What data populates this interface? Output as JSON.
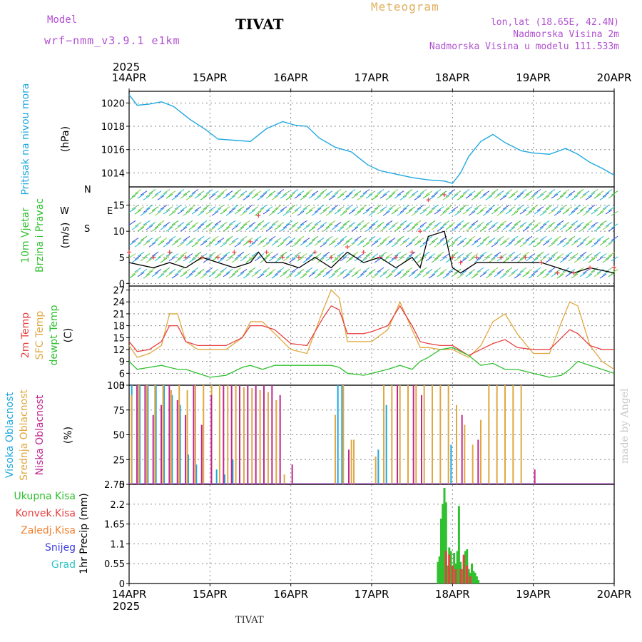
{
  "header": {
    "model_label": "Model",
    "model_name": "wrf−nmm_v3.9.1  e1km",
    "title": "TIVAT",
    "chart_name": "Meteogram",
    "lonlat": "lon,lat (18.65E, 42.4N)",
    "elev_station": "Nadmorska Visina 2m",
    "elev_model": "Nadmorska Visina u modelu 111.533m"
  },
  "footer": {
    "station": "TIVAT",
    "credit": "made by Angel"
  },
  "time_axis": {
    "year_top": "2025",
    "year_bottom": "2025",
    "labels": [
      "14APR",
      "15APR",
      "16APR",
      "17APR",
      "18APR",
      "19APR",
      "20APR"
    ]
  },
  "colors": {
    "pressure": "#20a8e0",
    "t2m": "#e84040",
    "sfc": "#e0a840",
    "dewpt": "#30c030",
    "high_cloud": "#20a8e0",
    "mid_cloud": "#e0a840",
    "low_cloud": "#c02890",
    "total_precip": "#30c030",
    "conv_precip": "#e84040",
    "frz_precip": "#f08030",
    "snow": "#4040e0",
    "grad": "#30c0c0"
  },
  "chart_data": [
    {
      "type": "line",
      "panel": "pressure",
      "ylabel_left": "Pritisak na nivou mora",
      "unit": "(hPa)",
      "ylim": [
        1012.8,
        1021
      ],
      "yticks": [
        1014,
        1016,
        1018,
        1020
      ],
      "x_days": [
        0,
        0.1,
        0.25,
        0.4,
        0.55,
        0.75,
        0.95,
        1.1,
        1.3,
        1.5,
        1.7,
        1.9,
        2.05,
        2.2,
        2.35,
        2.55,
        2.75,
        2.95,
        3.1,
        3.3,
        3.5,
        3.7,
        3.9,
        4.0,
        4.1,
        4.2,
        4.35,
        4.5,
        4.65,
        4.85,
        5.0,
        5.2,
        5.4,
        5.55,
        5.7,
        5.85,
        6.0
      ],
      "series": [
        {
          "values": [
            1020.7,
            1019.8,
            1019.9,
            1020.1,
            1019.7,
            1018.6,
            1017.7,
            1016.9,
            1016.8,
            1016.7,
            1017.8,
            1018.4,
            1018.1,
            1018.0,
            1017.0,
            1016.2,
            1015.8,
            1014.7,
            1014.2,
            1013.9,
            1013.6,
            1013.4,
            1013.3,
            1013.1,
            1014.0,
            1015.4,
            1016.7,
            1017.3,
            1016.6,
            1015.9,
            1015.7,
            1015.6,
            1016.1,
            1015.6,
            1014.9,
            1014.4,
            1013.8
          ]
        }
      ]
    },
    {
      "type": "line",
      "panel": "wind",
      "ylabel_left": [
        "10m Vjetar",
        "Brzina i Pravac"
      ],
      "unit": "(m/s)",
      "compass": {
        "n": "N",
        "e": "E",
        "s": "S",
        "w": "W"
      },
      "ylim": [
        -0.5,
        18.5
      ],
      "yticks": [
        0,
        5,
        10,
        15
      ],
      "x_days": [
        0,
        0.3,
        0.5,
        0.7,
        0.9,
        1.1,
        1.3,
        1.5,
        1.6,
        1.7,
        1.9,
        2.1,
        2.3,
        2.5,
        2.7,
        2.9,
        3.1,
        3.3,
        3.5,
        3.6,
        3.7,
        3.9,
        4.0,
        4.1,
        4.3,
        4.6,
        4.9,
        5.1,
        5.3,
        5.5,
        5.7,
        6.0
      ],
      "series": [
        {
          "name": "speed",
          "values": [
            4,
            3,
            4,
            3,
            5,
            4,
            3,
            4,
            6,
            4,
            4,
            3,
            5,
            3,
            6,
            4,
            5,
            3,
            5,
            3,
            9,
            10,
            3,
            2,
            4,
            4,
            4,
            4,
            3,
            2,
            3,
            2
          ]
        },
        {
          "name": "gust",
          "values": [
            6,
            5,
            6,
            5,
            5,
            5,
            6,
            8,
            13,
            6,
            5,
            5,
            6,
            5,
            7,
            6,
            5,
            5,
            6,
            10,
            16,
            17,
            5,
            4,
            5,
            5,
            5,
            4,
            2,
            2,
            3,
            3
          ]
        }
      ]
    },
    {
      "type": "line",
      "panel": "temperature",
      "ylabel_left": [
        "2m Temp",
        "SFC Temp",
        "dewpt Temp"
      ],
      "unit": "(C)",
      "ylim": [
        3,
        28
      ],
      "yticks": [
        3,
        6,
        9,
        12,
        15,
        18,
        21,
        24,
        27
      ],
      "x_days": [
        0,
        0.1,
        0.25,
        0.4,
        0.5,
        0.6,
        0.7,
        0.85,
        1.0,
        1.2,
        1.4,
        1.5,
        1.65,
        1.8,
        2.0,
        2.2,
        2.4,
        2.5,
        2.6,
        2.7,
        2.9,
        3.0,
        3.2,
        3.35,
        3.5,
        3.6,
        3.7,
        3.85,
        4.0,
        4.2,
        4.35,
        4.5,
        4.65,
        4.8,
        5.0,
        5.2,
        5.35,
        5.45,
        5.55,
        5.7,
        5.85,
        6.0
      ],
      "series": [
        {
          "name": "2m",
          "values": [
            14,
            11.5,
            12,
            14,
            18,
            18,
            14,
            13,
            13,
            13,
            15,
            18,
            18,
            17,
            13.5,
            13,
            20,
            23,
            22,
            16,
            16,
            16.5,
            18,
            23,
            18,
            14,
            13.5,
            13,
            13,
            10.5,
            12,
            13.5,
            14.5,
            12.5,
            12,
            12,
            15,
            17,
            16,
            13,
            12,
            12
          ]
        },
        {
          "name": "sfc",
          "values": [
            13,
            10,
            11,
            13,
            21,
            21,
            14,
            12,
            12,
            12,
            15,
            19,
            19,
            16,
            12,
            11,
            22,
            27,
            25,
            14,
            14,
            14,
            17,
            24,
            17,
            12.5,
            12.5,
            12,
            12,
            10,
            13,
            19,
            21,
            16,
            11,
            11,
            19,
            24,
            23,
            13,
            9,
            7
          ]
        },
        {
          "name": "dew",
          "values": [
            9,
            7,
            7.5,
            8,
            7.5,
            7,
            7,
            6,
            5,
            5.5,
            7.5,
            8,
            7,
            8,
            8,
            8,
            8,
            8,
            7.5,
            6,
            5.5,
            6,
            7,
            8,
            7,
            9,
            10,
            12,
            12.5,
            10.5,
            8,
            8.5,
            7,
            7,
            6,
            5,
            5.5,
            7,
            9,
            8,
            7,
            6
          ]
        }
      ]
    },
    {
      "type": "bar",
      "panel": "clouds",
      "ylabel_left": [
        "Visoka Oblacnost",
        "Srednja Oblacnost",
        "Niska Oblacnost"
      ],
      "unit": "(%)",
      "ylim": [
        0,
        100
      ],
      "yticks": [
        0,
        25,
        50,
        75,
        100
      ],
      "series": [
        {
          "name": "high",
          "x_days": [
            0.05,
            0.15,
            0.25,
            0.35,
            0.45,
            0.55,
            0.65,
            0.75,
            0.85,
            1.1,
            1.2,
            1.3,
            2.6,
            2.65,
            3.1,
            3.2,
            4.0
          ],
          "values": [
            100,
            100,
            100,
            100,
            100,
            90,
            80,
            30,
            20,
            15,
            10,
            25,
            100,
            100,
            35,
            80,
            40
          ]
        },
        {
          "name": "mid",
          "x_days": [
            0.03,
            0.12,
            0.22,
            0.32,
            0.42,
            0.52,
            0.62,
            0.72,
            0.82,
            0.92,
            1.02,
            1.12,
            1.22,
            1.32,
            1.42,
            1.52,
            1.62,
            1.72,
            1.82,
            1.92,
            2.55,
            2.65,
            2.75,
            2.78,
            3.05,
            3.15,
            3.25,
            3.35,
            3.45,
            3.55,
            3.65,
            3.75,
            3.85,
            3.95,
            4.05,
            4.15,
            4.25,
            4.35,
            4.45,
            4.55,
            4.65,
            4.75,
            4.85
          ],
          "values": [
            90,
            100,
            100,
            100,
            100,
            95,
            100,
            95,
            100,
            100,
            100,
            100,
            100,
            100,
            98,
            97,
            95,
            93,
            85,
            10,
            70,
            100,
            45,
            45,
            28,
            100,
            100,
            100,
            100,
            100,
            100,
            100,
            100,
            100,
            80,
            60,
            40,
            65,
            100,
            100,
            100,
            100,
            100
          ]
        },
        {
          "name": "low",
          "x_days": [
            0.08,
            0.18,
            0.28,
            0.38,
            0.48,
            0.58,
            0.68,
            0.78,
            0.88,
            1.0,
            1.15,
            1.25,
            1.35,
            1.45,
            1.55,
            1.65,
            1.75,
            1.85,
            2.0,
            2.7,
            3.3,
            3.5,
            3.6,
            4.1,
            4.3,
            5.0
          ],
          "values": [
            100,
            100,
            70,
            80,
            100,
            85,
            70,
            100,
            60,
            90,
            100,
            100,
            100,
            100,
            100,
            100,
            100,
            90,
            20,
            35,
            100,
            100,
            90,
            70,
            45,
            15
          ]
        }
      ]
    },
    {
      "type": "bar",
      "panel": "precip",
      "legend": [
        "Ukupna Kisa",
        "Konvek.Kisa",
        "Zaledj.Kisa",
        "Snijeg",
        "Grad"
      ],
      "unit": "1hr Precip (mm)",
      "ylim": [
        0,
        2.75
      ],
      "yticks": [
        0,
        0.55,
        1.1,
        1.65,
        2.2,
        2.75
      ],
      "series": [
        {
          "name": "total",
          "x_days": [
            3.82,
            3.84,
            3.86,
            3.88,
            3.9,
            3.92,
            3.94,
            3.96,
            3.98,
            4.0,
            4.02,
            4.04,
            4.06,
            4.08,
            4.1,
            4.12,
            4.14,
            4.16,
            4.18,
            4.2,
            4.22,
            4.24,
            4.26,
            4.28,
            4.3,
            4.32
          ],
          "values": [
            0.6,
            0.75,
            1.8,
            2.2,
            2.65,
            2.25,
            0.5,
            1.0,
            0.9,
            0.5,
            0.85,
            0.55,
            0.9,
            2.15,
            0.6,
            0.4,
            0.7,
            0.9,
            0.95,
            0.4,
            0.3,
            0.55,
            0.35,
            0.3,
            0.2,
            0.1
          ]
        },
        {
          "name": "conv",
          "x_days": [
            3.92,
            3.96,
            4.0,
            4.04,
            4.1,
            4.14,
            4.18,
            4.22
          ],
          "values": [
            0.9,
            0.8,
            0.5,
            0.4,
            0.4,
            0.8,
            0.5,
            0.2
          ]
        }
      ]
    }
  ]
}
